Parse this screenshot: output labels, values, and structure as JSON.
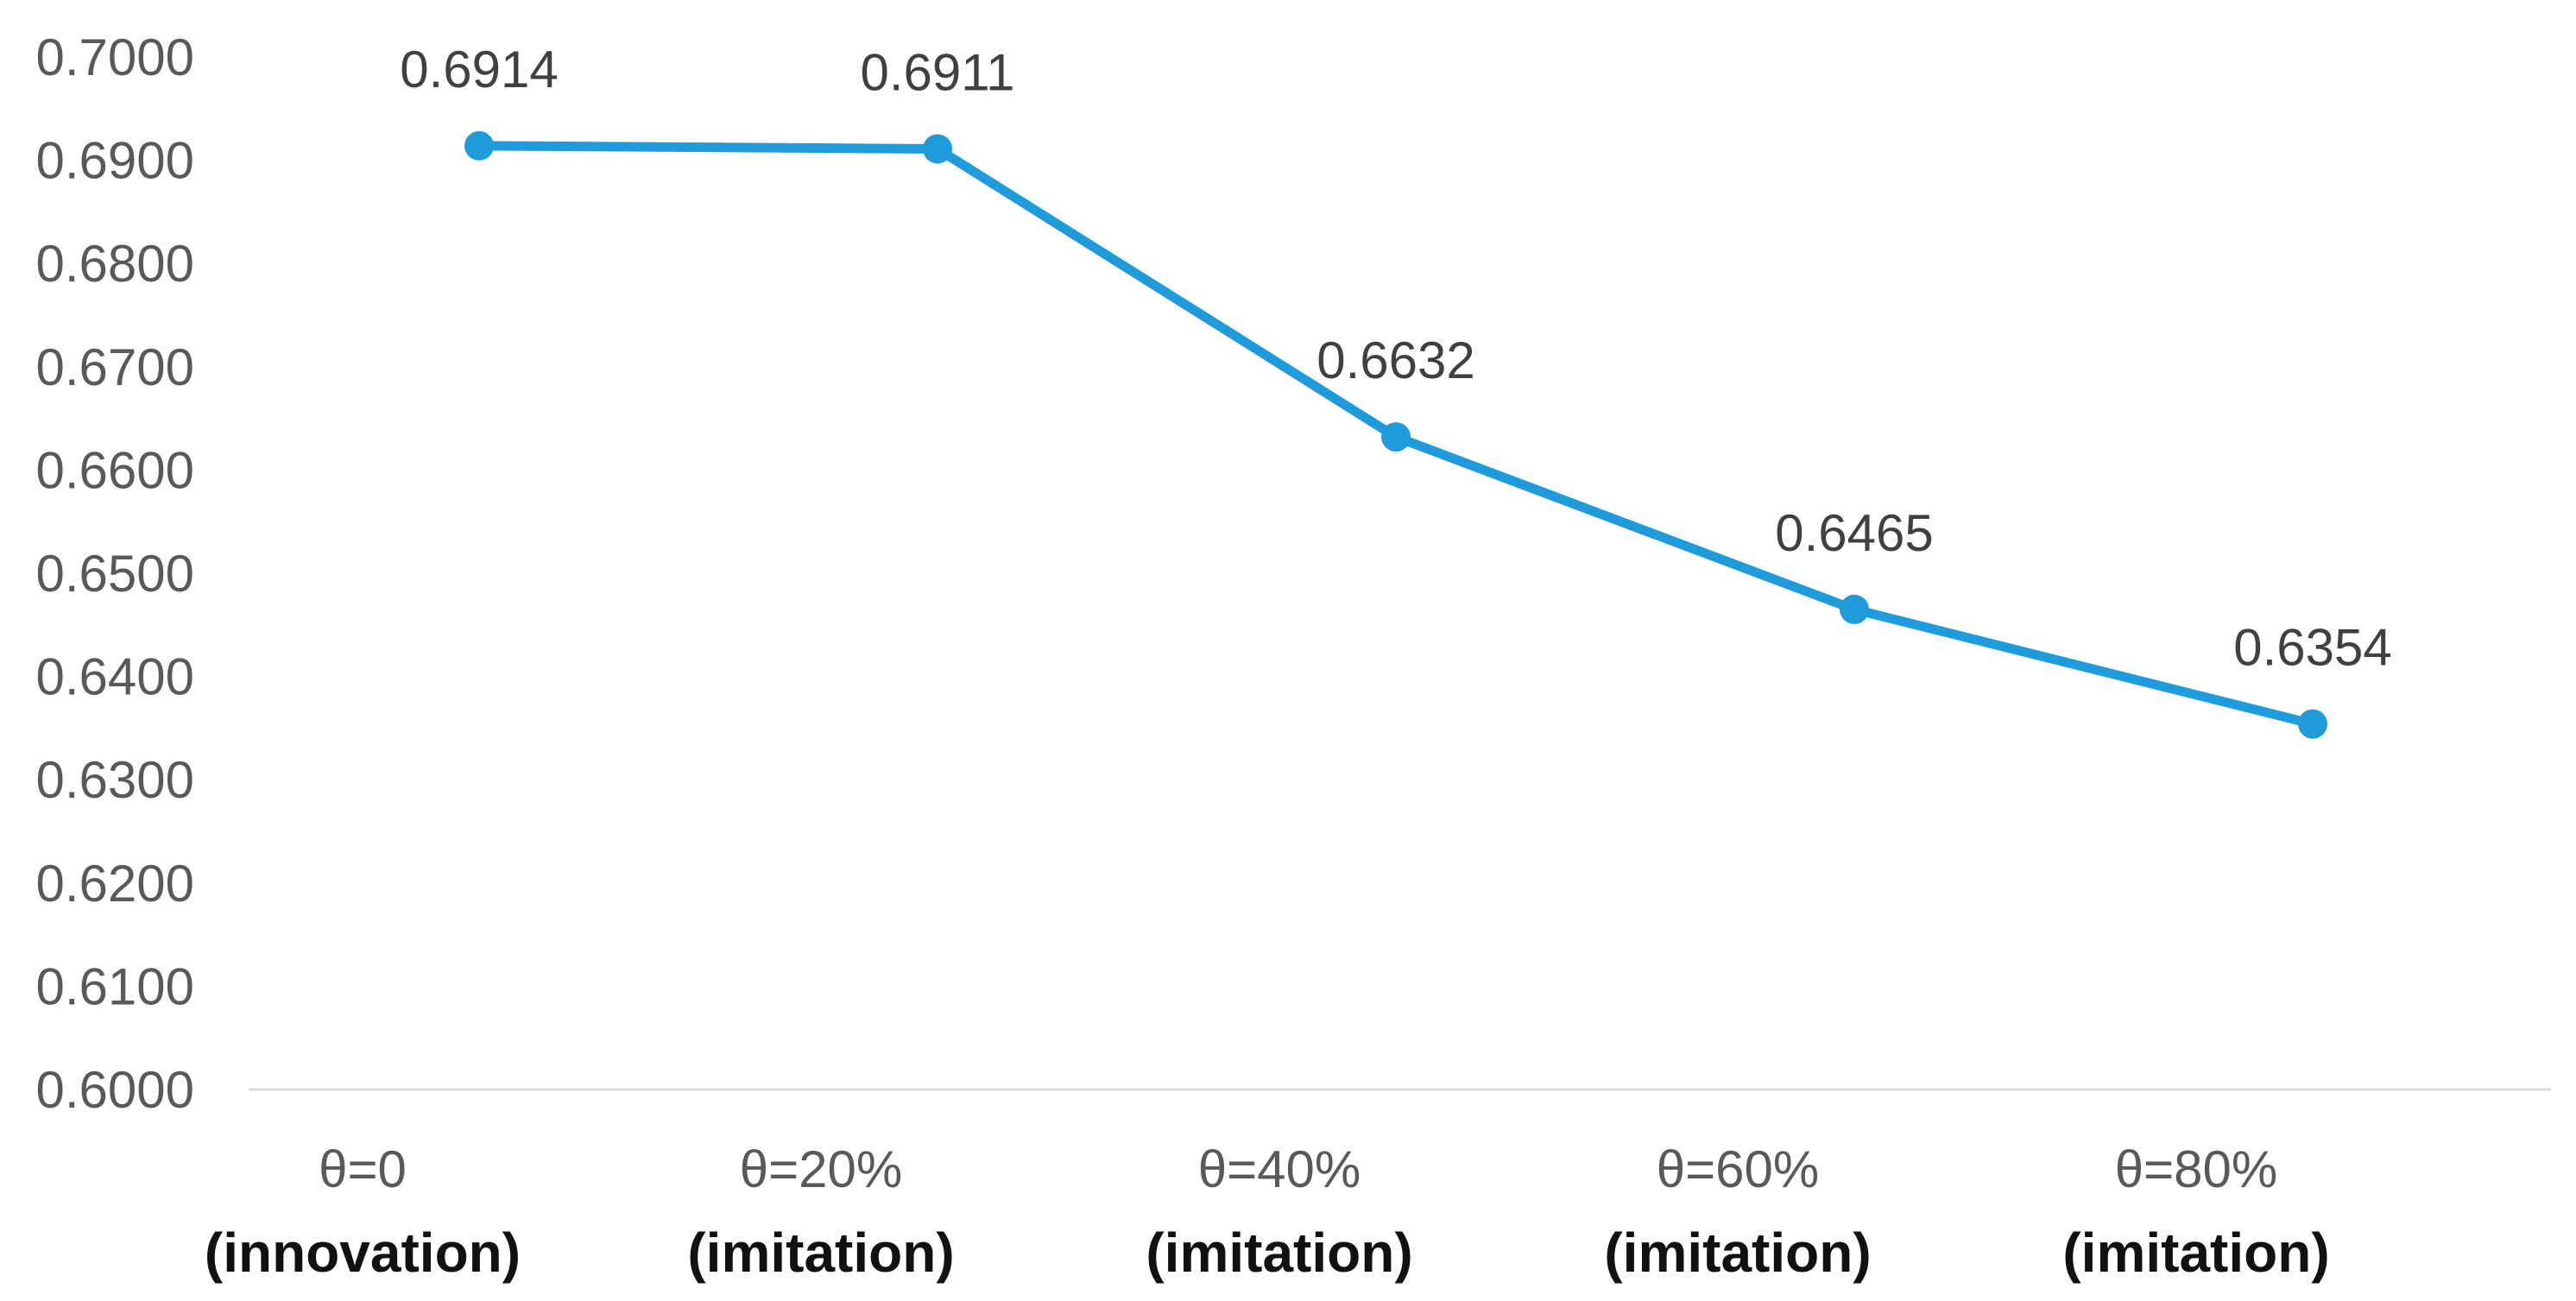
{
  "chart_data": {
    "type": "line",
    "title": "",
    "xlabel": "",
    "ylabel": "",
    "categories": [
      [
        "θ=0",
        "(innovation)"
      ],
      [
        "θ=20%",
        "(imitation)"
      ],
      [
        "θ=40%",
        "(imitation)"
      ],
      [
        "θ=60%",
        "(imitation)"
      ],
      [
        "θ=80%",
        "(imitation)"
      ]
    ],
    "series": [
      {
        "values": [
          0.6914,
          0.6911,
          0.6632,
          0.6465,
          0.6354
        ],
        "data_labels": [
          "0.6914",
          "0.6911",
          "0.6632",
          "0.6465",
          "0.6354"
        ],
        "color": "#1F9BDB"
      }
    ],
    "ylim": [
      0.6,
      0.7
    ],
    "yticks": [
      "0.7000",
      "0.6900",
      "0.6800",
      "0.6700",
      "0.6600",
      "0.6500",
      "0.6400",
      "0.6300",
      "0.6200",
      "0.6100",
      "0.6000"
    ],
    "grid": false,
    "legend": "none",
    "axis_color": "#D9D9D9"
  }
}
